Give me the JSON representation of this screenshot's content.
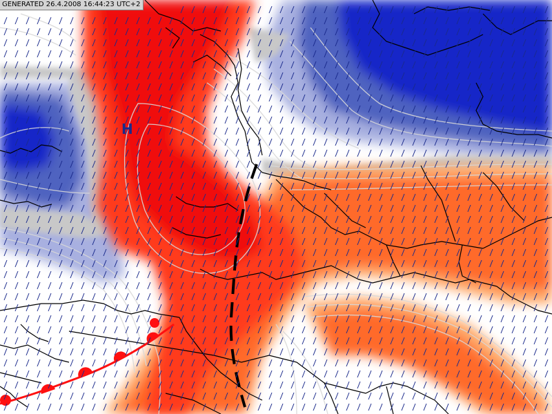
{
  "header": {
    "generated_text": "GENERATED 26.4.2008 16:44:23 UTC+2"
  },
  "map": {
    "pressure_center": {
      "label": "H",
      "type": "high"
    },
    "colors": {
      "warm_dark": "#f01010",
      "warm_mid": "#ff3a1a",
      "warm_orange": "#ff6a2a",
      "warm_light": "#ffa868",
      "cold_dark": "#1428c8",
      "cold_mid": "#5064c0",
      "cold_light": "#a8b0e0",
      "neutral_grey": "#c8c8c8",
      "contour": "#d8d8d8",
      "border": "#000000",
      "front_warm": "#ff1010",
      "front_dashed": "#000000",
      "wind_barb": "#1a2a8c",
      "pressure_label": "#1a2a8c"
    },
    "features": [
      "warm-front",
      "dashed-trough-line",
      "wind-barbs",
      "country-borders",
      "isotherm-contours"
    ]
  }
}
